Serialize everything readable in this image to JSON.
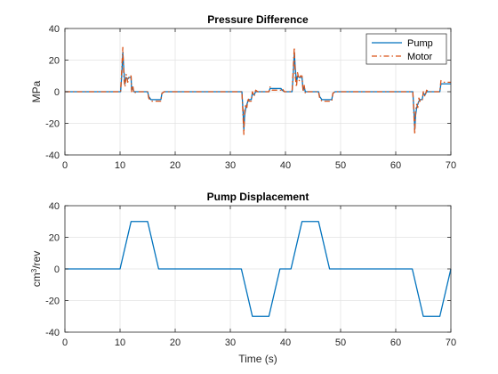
{
  "chart_data": [
    {
      "type": "line",
      "title": "Pressure Difference",
      "xlabel": "",
      "ylabel": "MPa",
      "xlim": [
        0,
        70
      ],
      "ylim": [
        -40,
        40
      ],
      "xticks": [
        0,
        10,
        20,
        30,
        40,
        50,
        60,
        70
      ],
      "yticks": [
        -40,
        -20,
        0,
        20,
        40
      ],
      "grid": true,
      "legend": "top-right",
      "series": [
        {
          "name": "Pump",
          "color": "#0072BD",
          "style": "solid",
          "x": [
            0,
            10.1,
            10.3,
            10.5,
            10.7,
            10.9,
            11.1,
            11.4,
            11.6,
            12.0,
            12.1,
            12.3,
            12.5,
            13.0,
            15.0,
            15.2,
            15.6,
            16.0,
            17.4,
            17.6,
            18.0,
            32.1,
            32.3,
            32.45,
            32.6,
            32.8,
            33.0,
            33.2,
            33.4,
            33.8,
            34.0,
            34.3,
            34.6,
            35.0,
            37.0,
            37.2,
            37.6,
            38.0,
            39.2,
            39.4,
            39.8,
            40.0,
            41.2,
            41.4,
            41.6,
            41.8,
            42.0,
            42.2,
            42.5,
            42.7,
            43.0,
            43.2,
            43.4,
            43.6,
            44.0,
            46.0,
            46.2,
            46.6,
            47.0,
            48.4,
            48.6,
            49.0,
            63.1,
            63.3,
            63.45,
            63.6,
            63.8,
            64.0,
            64.2,
            64.4,
            64.8,
            65.0,
            65.3,
            65.6,
            66.0,
            68.0,
            68.2,
            68.6,
            70.0
          ],
          "y": [
            0,
            0,
            10,
            25,
            13,
            5,
            9,
            8,
            9,
            9,
            1,
            3,
            0,
            0,
            0,
            -3,
            -5,
            -5,
            -5,
            -1,
            0,
            0,
            -12,
            -24,
            -15,
            -10,
            -8,
            -6,
            -5,
            -5,
            -1,
            -2,
            0,
            0,
            0,
            2,
            2,
            2,
            2,
            1,
            0,
            0,
            0,
            10,
            25,
            14,
            6,
            10,
            9,
            9,
            9,
            1,
            3,
            0,
            0,
            0,
            -3,
            -5,
            -5,
            -5,
            -1,
            0,
            0,
            -12,
            -24,
            -15,
            -10,
            -8,
            -6,
            -5,
            -5,
            -1,
            -2,
            0,
            0,
            0,
            5,
            5,
            5
          ]
        },
        {
          "name": "Motor",
          "color": "#D95319",
          "style": "dashdot",
          "x": [
            0,
            10.1,
            10.3,
            10.5,
            10.7,
            10.9,
            11.1,
            11.4,
            11.6,
            12.0,
            12.1,
            12.3,
            12.5,
            13.0,
            15.0,
            15.2,
            15.6,
            16.0,
            17.4,
            17.6,
            18.0,
            32.1,
            32.3,
            32.45,
            32.6,
            32.8,
            33.0,
            33.2,
            33.4,
            33.8,
            34.0,
            34.3,
            34.6,
            35.0,
            37.0,
            37.2,
            37.6,
            38.0,
            39.2,
            39.4,
            39.8,
            40.0,
            41.2,
            41.4,
            41.6,
            41.8,
            42.0,
            42.2,
            42.5,
            42.7,
            43.0,
            43.2,
            43.4,
            43.6,
            44.0,
            46.0,
            46.2,
            46.6,
            47.0,
            48.4,
            48.6,
            49.0,
            63.1,
            63.3,
            63.45,
            63.6,
            63.8,
            64.0,
            64.2,
            64.4,
            64.8,
            65.0,
            65.3,
            65.6,
            66.0,
            68.0,
            68.2,
            68.6,
            70.0
          ],
          "y": [
            0,
            0,
            14,
            28,
            8,
            3,
            11,
            6,
            10,
            10,
            0,
            4,
            -1,
            0,
            0,
            -4,
            -6,
            -6,
            -6,
            -1,
            0,
            0,
            -15,
            -27,
            -12,
            -8,
            -10,
            -4,
            -6,
            -6,
            0,
            -3,
            1,
            0,
            0,
            3,
            1,
            1,
            1,
            2,
            0,
            0,
            0,
            14,
            28,
            9,
            3,
            12,
            7,
            10,
            10,
            0,
            4,
            -1,
            0,
            0,
            -4,
            -6,
            -6,
            -6,
            -1,
            0,
            0,
            -15,
            -27,
            -12,
            -8,
            -10,
            -4,
            -6,
            -6,
            0,
            -3,
            1,
            0,
            0,
            7,
            6,
            6
          ]
        }
      ]
    },
    {
      "type": "line",
      "title": "Pump Displacement",
      "xlabel": "Time (s)",
      "ylabel_main": "cm",
      "ylabel_sup": "3",
      "ylabel_tail": "/rev",
      "xlim": [
        0,
        70
      ],
      "ylim": [
        -40,
        40
      ],
      "xticks": [
        0,
        10,
        20,
        30,
        40,
        50,
        60,
        70
      ],
      "yticks": [
        -40,
        -20,
        0,
        20,
        40
      ],
      "grid": true,
      "series": [
        {
          "color": "#0072BD",
          "style": "solid",
          "x": [
            0,
            10,
            12,
            15,
            17,
            32,
            34,
            37,
            39,
            40,
            41,
            43,
            46,
            48,
            63,
            65,
            68,
            70
          ],
          "y": [
            0,
            0,
            30,
            30,
            0,
            0,
            -30,
            -30,
            0,
            0,
            0,
            30,
            30,
            0,
            0,
            -30,
            -30,
            0
          ]
        }
      ]
    }
  ]
}
